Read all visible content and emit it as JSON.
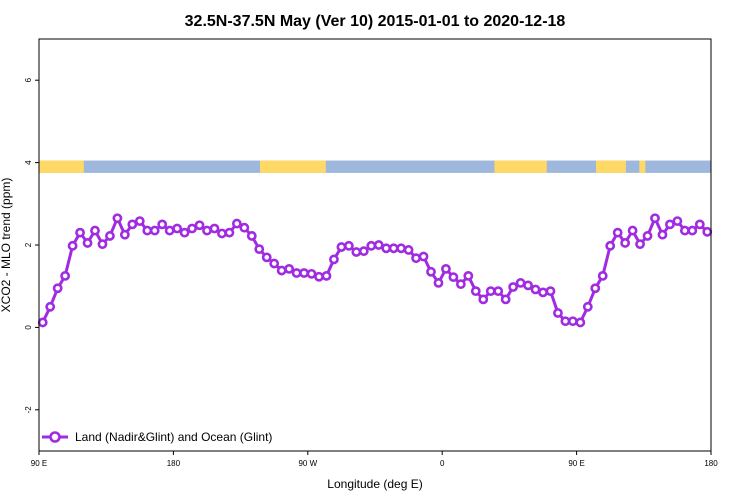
{
  "chart_data": {
    "type": "line",
    "title": "32.5N-37.5N May (Ver 10)   2015-01-01 to 2020-12-18",
    "xlabel": "Longitude (deg E)",
    "ylabel": "XCO2 - MLO trend (ppm)",
    "x_ticks": [
      {
        "value": 90,
        "label": "90 E"
      },
      {
        "value": 180,
        "label": "180"
      },
      {
        "value": 270,
        "label": "90 W"
      },
      {
        "value": 360,
        "label": "0"
      },
      {
        "value": 450,
        "label": "90 E"
      },
      {
        "value": 540,
        "label": "180"
      }
    ],
    "y_ticks": [
      {
        "value": -2,
        "label": "-2"
      },
      {
        "value": 0,
        "label": "0"
      },
      {
        "value": 2,
        "label": "2"
      },
      {
        "value": 4,
        "label": "4"
      },
      {
        "value": 6,
        "label": "6"
      }
    ],
    "xlim": [
      90,
      540
    ],
    "ylim": [
      -3,
      7
    ],
    "legend": {
      "position": "bottom-left"
    },
    "land_ocean_band": {
      "y_range": [
        3.75,
        4.05
      ],
      "land_color": "#FFD966",
      "ocean_color": "#9DB8DC",
      "land_segments": [
        [
          90,
          120
        ],
        [
          238,
          282
        ],
        [
          395,
          430
        ],
        [
          463,
          483
        ],
        [
          492,
          496
        ]
      ]
    },
    "series": [
      {
        "name": "Land (Nadir&Glint) and Ocean (Glint)",
        "color": "#A02BE0",
        "x": [
          92.5,
          97.5,
          102.5,
          107.5,
          112.5,
          117.5,
          122.5,
          127.5,
          132.5,
          137.5,
          142.5,
          147.5,
          152.5,
          157.5,
          162.5,
          167.5,
          172.5,
          177.5,
          182.5,
          187.5,
          192.5,
          197.5,
          202.5,
          207.5,
          212.5,
          217.5,
          222.5,
          227.5,
          232.5,
          237.5,
          242.5,
          247.5,
          252.5,
          257.5,
          262.5,
          267.5,
          272.5,
          277.5,
          282.5,
          287.5,
          292.5,
          297.5,
          302.5,
          307.5,
          312.5,
          317.5,
          322.5,
          327.5,
          332.5,
          337.5,
          342.5,
          347.5,
          352.5,
          357.5,
          362.5,
          367.5,
          372.5,
          377.5,
          382.5,
          387.5,
          392.5,
          397.5,
          402.5,
          407.5,
          412.5,
          417.5,
          422.5,
          427.5,
          432.5,
          437.5,
          442.5,
          447.5,
          452.5,
          457.5,
          462.5,
          467.5,
          472.5,
          477.5,
          482.5,
          487.5,
          492.5,
          497.5,
          502.5,
          507.5,
          512.5,
          517.5,
          522.5,
          527.5,
          532.5,
          537.5
        ],
        "values": [
          0.12,
          0.5,
          0.95,
          1.25,
          1.98,
          2.3,
          2.05,
          2.35,
          2.02,
          2.22,
          2.65,
          2.25,
          2.5,
          2.58,
          2.35,
          2.35,
          2.5,
          2.35,
          2.4,
          2.3,
          2.4,
          2.48,
          2.35,
          2.4,
          2.28,
          2.3,
          2.52,
          2.42,
          2.22,
          1.9,
          1.7,
          1.55,
          1.38,
          1.42,
          1.32,
          1.32,
          1.3,
          1.23,
          1.25,
          1.65,
          1.95,
          1.98,
          1.83,
          1.85,
          1.98,
          2.0,
          1.92,
          1.92,
          1.92,
          1.88,
          1.68,
          1.72,
          1.35,
          1.08,
          1.42,
          1.22,
          1.05,
          1.25,
          0.88,
          0.68,
          0.88,
          0.88,
          0.68,
          0.98,
          1.08,
          1.02,
          0.92,
          0.85,
          0.88,
          0.35,
          0.15,
          0.15,
          0.12,
          0.5,
          0.95,
          1.25,
          1.98,
          2.3,
          2.05,
          2.35,
          2.02,
          2.22,
          2.65,
          2.25,
          2.5,
          2.58,
          2.35,
          2.35,
          2.5,
          2.32
        ]
      }
    ]
  }
}
